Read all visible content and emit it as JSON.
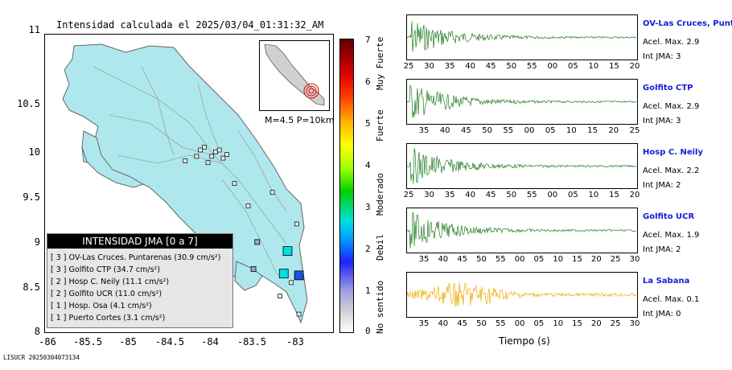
{
  "map": {
    "title": "Intensidad calculada el 2025/03/04_01:31:32_AM",
    "y_ticks": [
      "11",
      "10.5",
      "10",
      "9.5",
      "9",
      "8.5",
      "8"
    ],
    "x_ticks": [
      "-86",
      "-85.5",
      "-85",
      "-84.5",
      "-84",
      "-83.5",
      "-83"
    ],
    "inset_label": "M=4.5 P=10km"
  },
  "legend": {
    "title": "INTENSIDAD JMA [0 a 7]",
    "rows": [
      "[ 3 ]  OV-Las Cruces. Puntarenas (30.9 cm/s²)",
      "[ 3 ]  Golfito CTP (34.7 cm/s²)",
      "[ 2 ]  Hosp C. Neily (11.1 cm/s²)",
      "[ 2 ]  Golfito UCR (11.0 cm/s²)",
      "[ 1 ]  Hosp. Osa (4.1 cm/s²)",
      "[ 1 ]  Puerto Cortes (3.1 cm/s²)"
    ]
  },
  "colorbar": {
    "ticks": [
      "7",
      "6",
      "5",
      "4",
      "3",
      "2",
      "1",
      "0"
    ],
    "labels": [
      "Muy Fuerte",
      "Fuerte",
      "Moderado",
      "Debil",
      "No sentido"
    ]
  },
  "footer_id": "LISUCR 20250304073134",
  "traces": [
    {
      "station": "OV-Las Cruces, Puntar",
      "acel": "Acel. Max. 2.9",
      "jma": "Int JMA: 3",
      "color": "#1f7a1f",
      "ticks": [
        "25",
        "30",
        "35",
        "40",
        "45",
        "50",
        "55",
        "00",
        "05",
        "10",
        "15",
        "20"
      ]
    },
    {
      "station": "Golfito CTP",
      "acel": "Acel. Max. 2.9",
      "jma": "Int JMA: 3",
      "color": "#1f7a1f",
      "ticks": [
        "35",
        "40",
        "45",
        "50",
        "55",
        "00",
        "05",
        "10",
        "15",
        "20",
        "25"
      ]
    },
    {
      "station": "Hosp C. Neily",
      "acel": "Acel. Max. 2.2",
      "jma": "Int JMA: 2",
      "color": "#1f7a1f",
      "ticks": [
        "25",
        "30",
        "35",
        "40",
        "45",
        "50",
        "55",
        "00",
        "05",
        "10",
        "15",
        "20"
      ]
    },
    {
      "station": "Golfito UCR",
      "acel": "Acel. Max. 1.9",
      "jma": "Int JMA: 2",
      "color": "#1f7a1f",
      "ticks": [
        "35",
        "40",
        "45",
        "50",
        "55",
        "00",
        "05",
        "10",
        "15",
        "20",
        "25",
        "30"
      ]
    },
    {
      "station": "La Sabana",
      "acel": "Acel. Max. 0.1",
      "jma": "Int JMA: 0",
      "color": "#f0a800",
      "ticks": [
        "35",
        "40",
        "45",
        "50",
        "55",
        "00",
        "05",
        "10",
        "15",
        "20",
        "25",
        "30"
      ]
    }
  ],
  "time_label": "Tiempo (s)",
  "chart_data": {
    "type": "scatter",
    "title": "Intensidad calculada el 2025/03/04_01:31:32_AM",
    "xlim": [
      -86.3,
      -82.5
    ],
    "ylim": [
      8,
      11.3
    ],
    "colorbar_range": [
      0,
      7
    ],
    "stations": [
      {
        "name": "OV-Las Cruces. Puntarenas",
        "jma": 3,
        "pga_cm_s2": 30.9
      },
      {
        "name": "Golfito CTP",
        "jma": 3,
        "pga_cm_s2": 34.7
      },
      {
        "name": "Hosp C. Neily",
        "jma": 2,
        "pga_cm_s2": 11.1
      },
      {
        "name": "Golfito UCR",
        "jma": 2,
        "pga_cm_s2": 11.0
      },
      {
        "name": "Hosp. Osa",
        "jma": 1,
        "pga_cm_s2": 4.1
      },
      {
        "name": "Puerto Cortes",
        "jma": 1,
        "pga_cm_s2": 3.1
      }
    ],
    "markers": [
      {
        "lon": -83.1,
        "lat": 8.9,
        "jma": 3
      },
      {
        "lon": -83.15,
        "lat": 8.65,
        "jma": 3
      },
      {
        "lon": -82.95,
        "lat": 8.63,
        "jma": 2
      },
      {
        "lon": -83.5,
        "lat": 9.0,
        "jma": 1
      },
      {
        "lon": -83.55,
        "lat": 8.7,
        "jma": 1
      }
    ]
  }
}
